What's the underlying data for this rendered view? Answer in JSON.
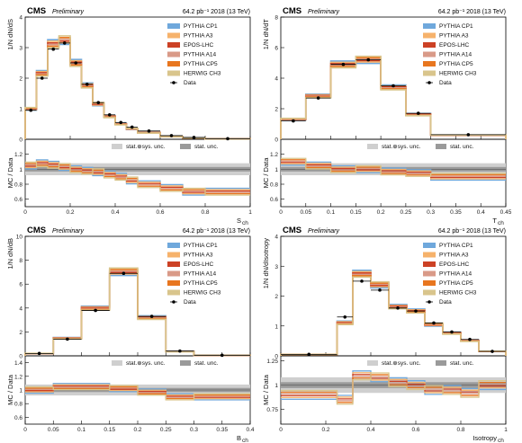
{
  "header": {
    "cms": "CMS",
    "preliminary": "Preliminary",
    "lumi": "64.2 pb⁻¹ 2018 (13 TeV)"
  },
  "legend": {
    "entries": [
      {
        "label": "PYTHIA CP1",
        "color": "#6fa8dc"
      },
      {
        "label": "PYTHIA A3",
        "color": "#f6b26b"
      },
      {
        "label": "EPOS-LHC",
        "color": "#cc4125"
      },
      {
        "label": "PYTHIA A14",
        "color": "#d99a88"
      },
      {
        "label": "PYTHIA CP5",
        "color": "#e8761f"
      },
      {
        "label": "HERWIG CH3",
        "color": "#d9c58c"
      }
    ],
    "data_label": "Data",
    "band_total": "stat.⊕sys. unc.",
    "band_stat": "stat. unc."
  },
  "chart_data": [
    {
      "type": "bar",
      "id": "sch",
      "xlabel": "S",
      "xsub": "ch",
      "ylabel": "1/N dN/dS",
      "ylabel_sub": "ch",
      "ratio_label": "MC / Data",
      "xlim": [
        0,
        1
      ],
      "ylim": [
        0,
        4
      ],
      "yticks": [
        0,
        1,
        2,
        3,
        4
      ],
      "xticks": [
        0.0,
        0.2,
        0.4,
        0.6,
        0.8,
        1.0
      ],
      "ratio_lim": [
        0.5,
        1.4
      ],
      "ratio_ticks": [
        0.6,
        0.8,
        1.0,
        1.2
      ],
      "bins": [
        0,
        0.05,
        0.1,
        0.15,
        0.2,
        0.25,
        0.3,
        0.35,
        0.4,
        0.45,
        0.5,
        0.6,
        0.7,
        0.8,
        1.0
      ],
      "data": [
        0.95,
        2.0,
        2.95,
        3.15,
        2.5,
        1.8,
        1.2,
        0.8,
        0.55,
        0.4,
        0.27,
        0.12,
        0.06,
        0.02
      ],
      "mc_scale": [
        1.05,
        1.08,
        1.06,
        1.03,
        1.0,
        0.98,
        0.96,
        0.93,
        0.9,
        0.85,
        0.8,
        0.75,
        0.7,
        0.7
      ],
      "legend_right": true,
      "show_band_labels": true
    },
    {
      "type": "bar",
      "id": "tch",
      "xlabel": "T",
      "xsub": "ch",
      "ylabel": "1/N dN/dT",
      "ylabel_sub": "ch",
      "ratio_label": "MC / Data",
      "xlim": [
        0,
        0.45
      ],
      "ylim": [
        0,
        8
      ],
      "yticks": [
        0,
        2,
        4,
        6,
        8
      ],
      "xticks": [
        0,
        0.05,
        0.1,
        0.15,
        0.2,
        0.25,
        0.3,
        0.35,
        0.4,
        0.45
      ],
      "ratio_lim": [
        0.5,
        1.4
      ],
      "ratio_ticks": [
        0.6,
        0.8,
        1.0,
        1.2
      ],
      "bins": [
        0,
        0.05,
        0.1,
        0.15,
        0.2,
        0.25,
        0.3,
        0.45
      ],
      "data": [
        1.2,
        2.7,
        4.9,
        5.2,
        3.5,
        1.7,
        0.3
      ],
      "mc_scale": [
        1.1,
        1.05,
        1.0,
        1.0,
        0.97,
        0.95,
        0.9
      ],
      "legend_right": true,
      "show_band_labels": true
    },
    {
      "type": "bar",
      "id": "bch",
      "xlabel": "B",
      "xsub": "ch",
      "ylabel": "1/N dN/dB",
      "ylabel_sub": "ch",
      "ratio_label": "MC / Data",
      "xlim": [
        0,
        0.4
      ],
      "ylim": [
        0,
        10
      ],
      "yticks": [
        0,
        2,
        4,
        6,
        8,
        10
      ],
      "xticks": [
        0.0,
        0.05,
        0.1,
        0.15,
        0.2,
        0.25,
        0.3,
        0.35,
        0.4
      ],
      "ratio_lim": [
        0.5,
        1.5
      ],
      "ratio_ticks": [
        0.6,
        0.8,
        1.0,
        1.2,
        1.4
      ],
      "bins": [
        0,
        0.05,
        0.1,
        0.15,
        0.2,
        0.25,
        0.3,
        0.4
      ],
      "data": [
        0.2,
        1.4,
        3.8,
        6.9,
        3.3,
        0.4,
        0.05
      ],
      "mc_scale": [
        1.0,
        1.05,
        1.05,
        1.02,
        0.97,
        0.9,
        0.9
      ],
      "legend_right": false,
      "show_band_labels": true
    },
    {
      "type": "bar",
      "id": "iso",
      "xlabel": "Isotropy",
      "xsub": "ch",
      "ylabel": "1/N dN/dIsotropy",
      "ylabel_sub": "ch",
      "ratio_label": "MC / Data",
      "xlim": [
        0,
        1
      ],
      "ylim": [
        0,
        4
      ],
      "yticks": [
        0,
        1,
        2,
        3,
        4
      ],
      "xticks": [
        0.0,
        0.2,
        0.4,
        0.6,
        0.8,
        1.0
      ],
      "ratio_lim": [
        0.6,
        1.3
      ],
      "ratio_ticks": [
        0.75,
        1.0,
        1.25
      ],
      "bins": [
        0,
        0.25,
        0.32,
        0.4,
        0.48,
        0.56,
        0.64,
        0.72,
        0.8,
        0.88,
        1.0
      ],
      "data": [
        0.05,
        1.3,
        2.5,
        2.2,
        1.6,
        1.5,
        1.1,
        0.8,
        0.55,
        0.15
      ],
      "mc_scale": [
        0.9,
        0.85,
        1.1,
        1.08,
        1.03,
        1.0,
        0.95,
        0.95,
        0.92,
        1.0
      ],
      "legend_right": true,
      "show_band_labels": true
    }
  ]
}
